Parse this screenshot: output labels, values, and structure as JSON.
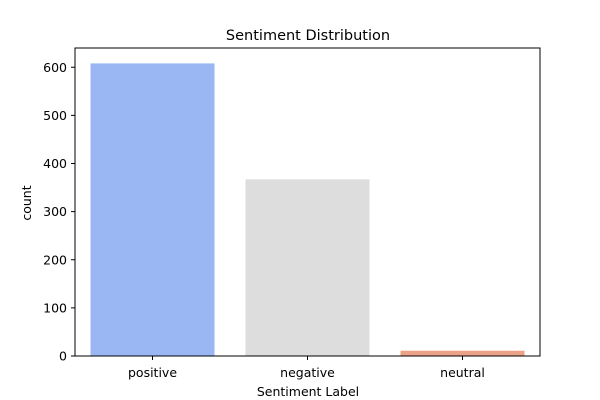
{
  "chart_data": {
    "type": "bar",
    "title": "Sentiment Distribution",
    "xlabel": "Sentiment Label",
    "ylabel": "count",
    "categories": [
      "positive",
      "negative",
      "neutral"
    ],
    "values": [
      608,
      367,
      11
    ],
    "colors": [
      "#9ab7f4",
      "#dddddd",
      "#eca287"
    ],
    "ylim": [
      0,
      640
    ],
    "yticks": [
      0,
      100,
      200,
      300,
      400,
      500,
      600
    ],
    "grid": false,
    "legend": "none"
  }
}
